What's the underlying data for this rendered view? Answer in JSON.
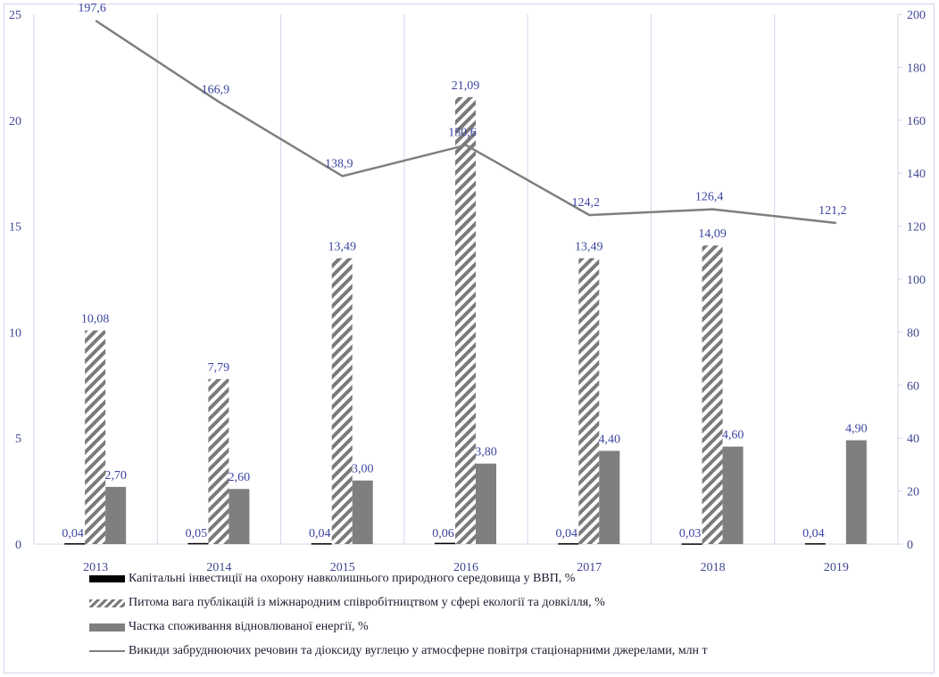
{
  "chart_data": {
    "type": "bar",
    "categories": [
      "2013",
      "2014",
      "2015",
      "2016",
      "2017",
      "2018",
      "2019"
    ],
    "y_left": {
      "min": 0,
      "max": 25,
      "ticks": [
        0,
        5,
        10,
        15,
        20,
        25
      ]
    },
    "y_right": {
      "min": 0,
      "max": 200,
      "ticks": [
        0,
        20,
        40,
        60,
        80,
        100,
        120,
        140,
        160,
        180,
        200
      ]
    },
    "gridlines": "vertical-category",
    "legend_position": "bottom",
    "series": [
      {
        "name": "Капітальні інвестиції на охорону навколишнього природного середовища у  ВВП, %",
        "kind": "bar",
        "axis": "left",
        "style": "black",
        "values": [
          0.04,
          0.05,
          0.04,
          0.06,
          0.04,
          0.03,
          0.04
        ],
        "labels": [
          "0,04",
          "0,05",
          "0,04",
          "0,06",
          "0,04",
          "0,03",
          "0,04"
        ]
      },
      {
        "name": "Питома вага  публікацій із міжнародним співробітництвом  у сфері екології та довкілля, %",
        "kind": "bar",
        "axis": "left",
        "style": "hatched",
        "values": [
          10.08,
          7.79,
          13.49,
          21.09,
          13.49,
          14.09,
          null
        ],
        "labels": [
          "10,08",
          "7,79",
          "13,49",
          "21,09",
          "13,49",
          "14,09",
          ""
        ]
      },
      {
        "name": "Частка споживання відновлюваної енергії, %",
        "kind": "bar",
        "axis": "left",
        "style": "gray",
        "values": [
          2.7,
          2.6,
          3.0,
          3.8,
          4.4,
          4.6,
          4.9
        ],
        "labels": [
          "2,70",
          "2,60",
          "3,00",
          "3,80",
          "4,40",
          "4,60",
          "4,90"
        ]
      },
      {
        "name": "Викиди забруднюючих речовин та діоксиду вуглецю у атмосферне повітря стаціонарними джерелами, млн т",
        "kind": "line",
        "axis": "right",
        "style": "line",
        "values": [
          197.6,
          166.9,
          138.9,
          150.6,
          124.2,
          126.4,
          121.2
        ],
        "labels": [
          "197,6",
          "166,9",
          "138,9",
          "150,6",
          "124,2",
          "126,4",
          "121,2"
        ]
      }
    ],
    "colors": {
      "axis_text": "#404892",
      "gridline": "#d4d6ea",
      "black_bar": "#000000",
      "hatch": "#7a7a7a",
      "gray_bar": "#7f7f7f",
      "line": "#7f7f7f"
    }
  }
}
